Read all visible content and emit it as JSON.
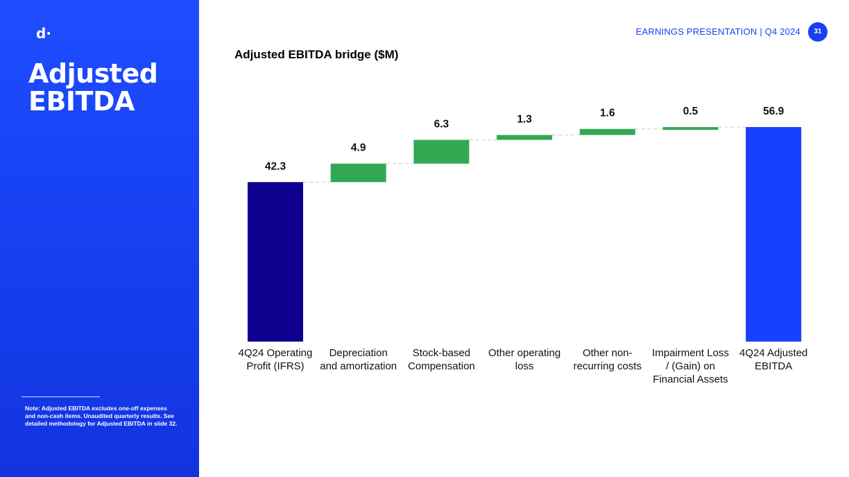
{
  "sidebar": {
    "logo": "d·",
    "title": "Adjusted EBITDA",
    "note": "Note: Adjusted EBITDA excludes one-off expenses and non-cash items. Unaudited quarterly results. See detailed methodology for Adjusted EBITDA in slide 32."
  },
  "header": {
    "presentation_label": "EARNINGS PRESENTATION | Q4 2024",
    "page_number": "31"
  },
  "colors": {
    "brand_blue": "#1741f2",
    "start_bar": "#10008f",
    "increase_bar": "#33a853",
    "end_bar": "#1741ff"
  },
  "chart_data": {
    "type": "bar",
    "subtype": "waterfall",
    "title": "Adjusted EBITDA bridge ($M)",
    "categories": [
      [
        "4Q24 Operating",
        "Profit (IFRS)"
      ],
      [
        "Depreciation",
        "and amortization"
      ],
      [
        "Stock-based",
        "Compensation"
      ],
      [
        "Other operating",
        "loss"
      ],
      [
        "Other non-",
        "recurring costs"
      ],
      [
        "Impairment Loss",
        "/ (Gain) on",
        "Financial Assets"
      ],
      [
        "4Q24 Adjusted",
        "EBITDA"
      ]
    ],
    "values": [
      42.3,
      4.9,
      6.3,
      1.3,
      1.6,
      0.5,
      56.9
    ],
    "labels": [
      "42.3",
      "4.9",
      "6.3",
      "1.3",
      "1.6",
      "0.5",
      "56.9"
    ],
    "kinds": [
      "total",
      "increase",
      "increase",
      "increase",
      "increase",
      "increase",
      "total"
    ],
    "ylim": [
      0,
      56.9
    ],
    "grid": false,
    "connectors": true
  }
}
